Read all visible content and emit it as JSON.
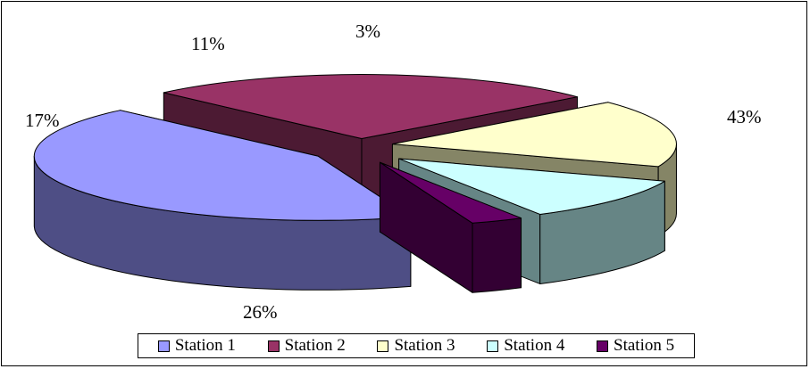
{
  "chart_data": {
    "type": "pie",
    "variant": "3d-exploded",
    "categories": [
      "Station 1",
      "Station 2",
      "Station 3",
      "Station 4",
      "Station 5"
    ],
    "values": [
      43,
      26,
      17,
      11,
      3
    ],
    "labels": [
      "43%",
      "26%",
      "17%",
      "11%",
      "3%"
    ],
    "colors": [
      {
        "top": "#9999ff",
        "side": "#4e4e85"
      },
      {
        "top": "#993366",
        "side": "#4c1a33"
      },
      {
        "top": "#ffffcc",
        "side": "#858566"
      },
      {
        "top": "#ccffff",
        "side": "#668585"
      },
      {
        "top": "#660066",
        "side": "#330033"
      }
    ],
    "legend_position": "bottom",
    "title": ""
  }
}
